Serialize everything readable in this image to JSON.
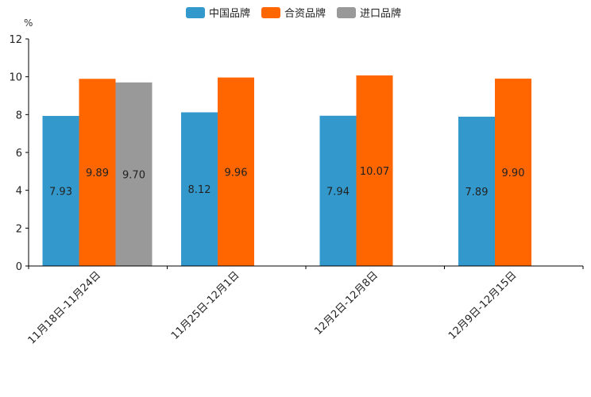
{
  "chart_data": {
    "type": "bar",
    "title": "",
    "xlabel": "",
    "ylabel": "%",
    "ylim": [
      0,
      12
    ],
    "yticks": [
      0,
      2,
      4,
      6,
      8,
      10,
      12
    ],
    "ytick_labels": [
      "0",
      "2",
      "4",
      "6",
      "8",
      "10",
      "12"
    ],
    "grid": false,
    "legend_position": "top-center",
    "categories": [
      "11月18日-11月24日",
      "11月25日-12月1日",
      "12月2日-12月8日",
      "12月9日-12月15日"
    ],
    "series": [
      {
        "name": "中国品牌",
        "color": "#3399cc",
        "values": [
          7.93,
          8.12,
          7.94,
          7.89
        ],
        "labels": [
          "7.93",
          "8.12",
          "7.94",
          "7.89"
        ]
      },
      {
        "name": "合资品牌",
        "color": "#ff6600",
        "values": [
          9.89,
          9.96,
          10.07,
          9.9
        ],
        "labels": [
          "9.89",
          "9.96",
          "10.07",
          "9.90"
        ]
      },
      {
        "name": "进口品牌",
        "color": "#999999",
        "values": [
          9.7,
          null,
          null,
          null
        ],
        "labels": [
          "9.70",
          null,
          null,
          null
        ]
      }
    ]
  }
}
